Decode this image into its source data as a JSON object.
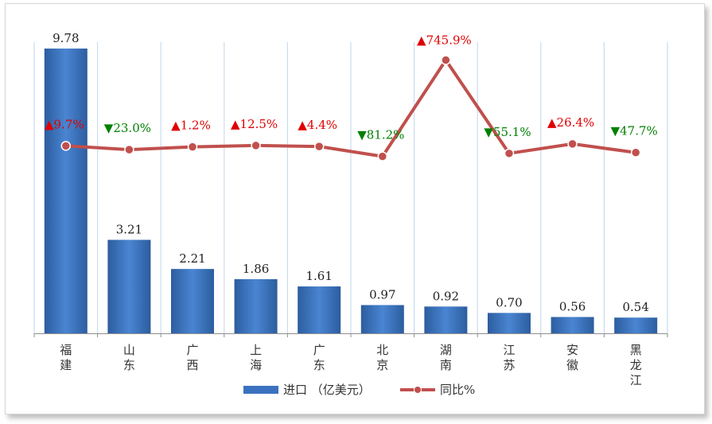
{
  "chart_data": {
    "type": "bar",
    "categories": [
      "福\n建",
      "山\n东",
      "广\n西",
      "上\n海",
      "广\n东",
      "北\n京",
      "湖\n南",
      "江\n苏",
      "安\n徽",
      "黑\n龙\n江"
    ],
    "series": [
      {
        "name": "进口 （亿美元）",
        "type": "bar",
        "values": [
          9.78,
          3.21,
          2.21,
          1.86,
          1.61,
          0.97,
          0.92,
          0.7,
          0.56,
          0.54
        ],
        "labels": [
          "9.78",
          "3.21",
          "2.21",
          "1.86",
          "1.61",
          "0.97",
          "0.92",
          "0.70",
          "0.56",
          "0.54"
        ],
        "color": "#3a72c0"
      },
      {
        "name": "同比%",
        "type": "line",
        "values": [
          9.7,
          -23.0,
          1.2,
          12.5,
          4.4,
          -81.2,
          745.9,
          -55.1,
          26.4,
          -47.7
        ],
        "labels": [
          "9.7%",
          "23.0%",
          "1.2%",
          "12.5%",
          "4.4%",
          "81.2%",
          "745.9%",
          "55.1%",
          "26.4%",
          "47.7%"
        ],
        "color": "#c0504d"
      }
    ],
    "up_color": "#e00000",
    "down_color": "#008000",
    "up_symbol": "▲",
    "down_symbol": "▼",
    "bar_ylim": [
      0,
      10
    ],
    "line_ylim": [
      -1600,
      900
    ],
    "grid": "vertical",
    "legend": "bottom-center"
  }
}
